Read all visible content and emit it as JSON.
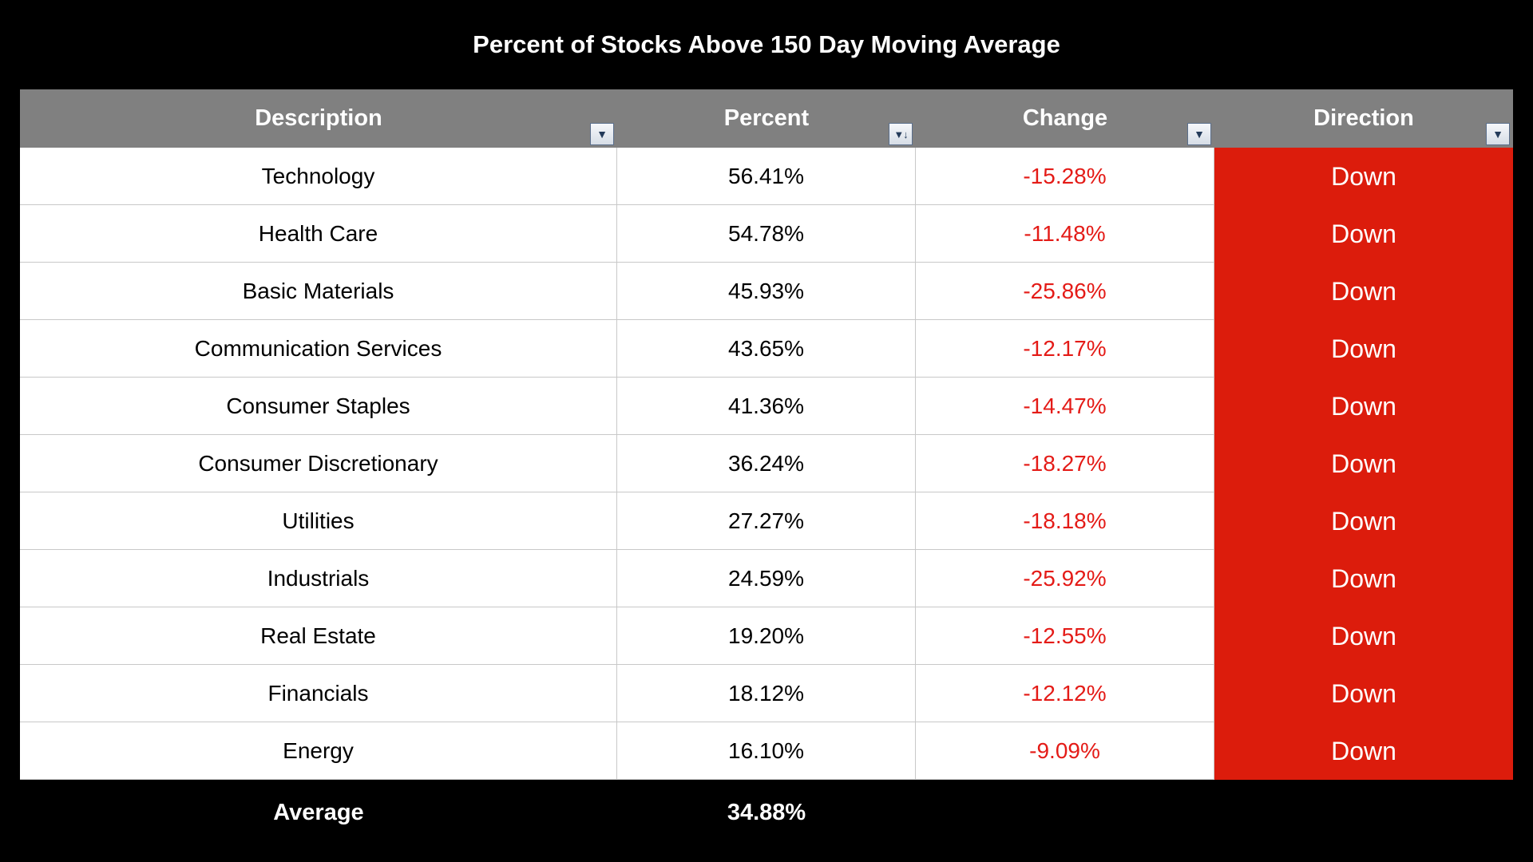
{
  "title": "Percent of Stocks Above 150 Day Moving Average",
  "headers": {
    "description": "Description",
    "percent": "Percent",
    "change": "Change",
    "direction": "Direction"
  },
  "filter_icons": {
    "description": "▼",
    "percent": "▼↓",
    "change": "▼",
    "direction": "▼"
  },
  "rows": [
    {
      "description": "Technology",
      "percent": "56.41%",
      "change": "-15.28%",
      "direction": "Down"
    },
    {
      "description": "Health Care",
      "percent": "54.78%",
      "change": "-11.48%",
      "direction": "Down"
    },
    {
      "description": "Basic Materials",
      "percent": "45.93%",
      "change": "-25.86%",
      "direction": "Down"
    },
    {
      "description": "Communication Services",
      "percent": "43.65%",
      "change": "-12.17%",
      "direction": "Down"
    },
    {
      "description": "Consumer Staples",
      "percent": "41.36%",
      "change": "-14.47%",
      "direction": "Down"
    },
    {
      "description": "Consumer Discretionary",
      "percent": "36.24%",
      "change": "-18.27%",
      "direction": "Down"
    },
    {
      "description": "Utilities",
      "percent": "27.27%",
      "change": "-18.18%",
      "direction": "Down"
    },
    {
      "description": "Industrials",
      "percent": "24.59%",
      "change": "-25.92%",
      "direction": "Down"
    },
    {
      "description": "Real Estate",
      "percent": "19.20%",
      "change": "-12.55%",
      "direction": "Down"
    },
    {
      "description": "Financials",
      "percent": "18.12%",
      "change": "-12.12%",
      "direction": "Down"
    },
    {
      "description": "Energy",
      "percent": "16.10%",
      "change": "-9.09%",
      "direction": "Down"
    }
  ],
  "footer": {
    "label": "Average",
    "percent": "34.88%"
  },
  "colors": {
    "background": "#000000",
    "header_background": "#808080",
    "change_text": "#e41b17",
    "direction_down_fill": "#dc1c0c"
  }
}
